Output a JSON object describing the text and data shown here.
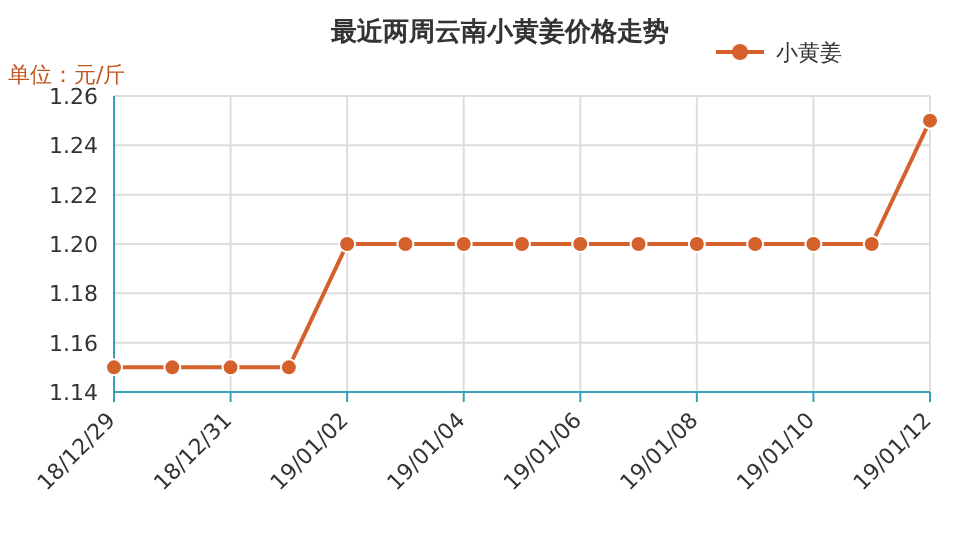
{
  "chart_data": {
    "type": "line",
    "title": "最近两周云南小黄姜价格走势",
    "ylabel": "单位：元/斤",
    "categories": [
      "18/12/29",
      null,
      "18/12/31",
      null,
      "19/01/02",
      null,
      "19/01/04",
      null,
      "19/01/06",
      null,
      "19/01/08",
      null,
      "19/01/10",
      null,
      "19/01/12"
    ],
    "series": [
      {
        "name": "小黄姜",
        "color": "#d4612c",
        "values": [
          1.15,
          1.15,
          1.15,
          1.15,
          1.2,
          1.2,
          1.2,
          1.2,
          1.2,
          1.2,
          1.2,
          1.2,
          1.2,
          1.2,
          1.25
        ]
      }
    ],
    "ylim": [
      1.14,
      1.26
    ],
    "yticks": [
      1.14,
      1.16,
      1.18,
      {
        "value": 1.2,
        "label": "1.20"
      },
      1.22,
      1.24,
      1.26
    ],
    "grid": true,
    "legend": "top right",
    "marker": "circle",
    "line_style": "solid"
  }
}
